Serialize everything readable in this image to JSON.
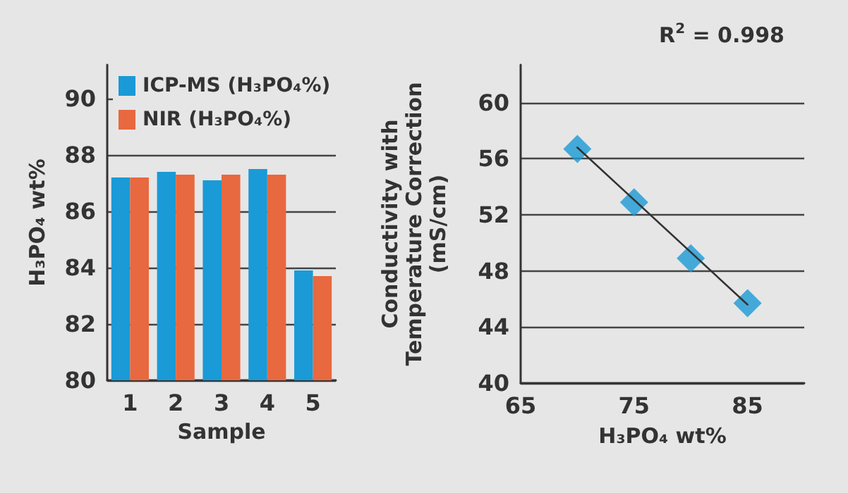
{
  "chart_data": [
    {
      "type": "bar",
      "categories": [
        "1",
        "2",
        "3",
        "4",
        "5"
      ],
      "xlabel": "Sample",
      "ylabel": "H₃PO₄ wt%",
      "ylim": [
        80,
        91.2
      ],
      "yticks": [
        80,
        82,
        84,
        86,
        88,
        90
      ],
      "grid": "y",
      "legend": "top left",
      "series": [
        {
          "name": "ICP-MS (H₃PO₄%)",
          "color": "#1a9ad6",
          "values": [
            87.2,
            87.4,
            87.1,
            87.5,
            83.9
          ]
        },
        {
          "name": "NIR (H₃PO₄%)",
          "color": "#e8683f",
          "values": [
            87.2,
            87.3,
            87.3,
            87.3,
            83.7
          ]
        }
      ]
    },
    {
      "type": "scatter",
      "xlabel": "H₃PO₄ wt%",
      "ylabel": "Conductivity with\nTemperature Correction\n(mS/cm)",
      "xlim": [
        65,
        90
      ],
      "xticks": [
        65,
        75,
        85
      ],
      "ylim": [
        40,
        62.7
      ],
      "yticks": [
        40,
        44,
        48,
        52,
        56,
        60
      ],
      "grid": "y",
      "annotations": [
        "R$^{2}$ = 0.998"
      ],
      "series": [
        {
          "type": "scatter",
          "marker": "diamond",
          "color": "#1a9ad6",
          "x": [
            70,
            75,
            80,
            85
          ],
          "values": [
            56.7,
            52.9,
            48.9,
            45.7
          ]
        },
        {
          "type": "line",
          "marker": "none",
          "line_style": "solid",
          "color": "#333333",
          "x": [
            70,
            85
          ],
          "values": [
            56.8,
            45.6
          ]
        }
      ]
    }
  ]
}
